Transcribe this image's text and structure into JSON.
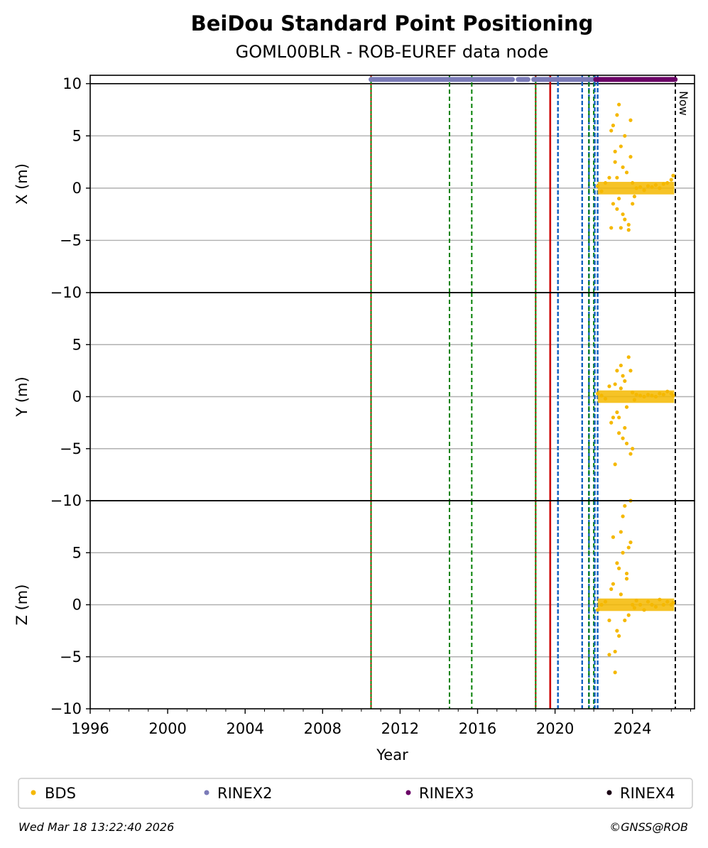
{
  "title": "BeiDou Standard Point Positioning",
  "subtitle": "GOML00BLR - ROB-EUREF data node",
  "footer": {
    "timestamp": "Wed Mar 18 13:22:40 2026",
    "credit": "©GNSS@ROB"
  },
  "legend": [
    {
      "label": "BDS",
      "color": "#f5b800"
    },
    {
      "label": "RINEX2",
      "color": "#7b7bb8"
    },
    {
      "label": "RINEX3",
      "color": "#6a0066"
    },
    {
      "label": "RINEX4",
      "color": "#1a0014"
    }
  ],
  "now_label": "Now",
  "chart_data": {
    "type": "scatter",
    "xlabel": "Year",
    "xlim": [
      1996,
      2027.2
    ],
    "x_ticks": [
      1996,
      2000,
      2004,
      2008,
      2012,
      2016,
      2020,
      2024
    ],
    "x_tick_labels": [
      "1996",
      "2000",
      "2004",
      "2008",
      "2012",
      "2016",
      "2020",
      "2024"
    ],
    "now": 2026.21,
    "panels": [
      {
        "ylabel": "X (m)",
        "ylim": [
          -10,
          10.8
        ],
        "y_ticks": [
          10,
          5,
          0,
          -5,
          -10
        ],
        "y_tick_labels": [
          "10",
          "5",
          "0",
          "−5",
          "−10"
        ]
      },
      {
        "ylabel": "Y (m)",
        "ylim": [
          -10,
          10
        ],
        "y_ticks": [
          5,
          0,
          -5,
          -10
        ],
        "y_tick_labels": [
          "5",
          "0",
          "−5",
          "−10"
        ]
      },
      {
        "ylabel": "Z (m)",
        "ylim": [
          -10,
          10
        ],
        "y_ticks": [
          5,
          0,
          -5,
          -10
        ],
        "y_tick_labels": [
          "5",
          "0",
          "−5",
          "−10"
        ]
      }
    ],
    "events": [
      {
        "x": 2010.5,
        "kind": "green-red-dotted"
      },
      {
        "x": 2014.55,
        "kind": "green-dashed"
      },
      {
        "x": 2015.7,
        "kind": "green-dashed"
      },
      {
        "x": 2019.0,
        "kind": "green-red-dotted"
      },
      {
        "x": 2019.75,
        "kind": "red-solid"
      },
      {
        "x": 2020.15,
        "kind": "blue-dashed"
      },
      {
        "x": 2021.4,
        "kind": "blue-dashed"
      },
      {
        "x": 2021.75,
        "kind": "blue-dashed"
      },
      {
        "x": 2021.75,
        "kind": "green-dashed"
      },
      {
        "x": 2022.0,
        "kind": "green-dashed"
      },
      {
        "x": 2022.05,
        "kind": "blue-dashed"
      },
      {
        "x": 2022.2,
        "kind": "blue-dashed"
      }
    ],
    "data_availability": [
      {
        "series": "RINEX2",
        "start": 2010.5,
        "end": 2022.1,
        "y": 10.4,
        "gaps": [
          [
            2017.8,
            2018.1
          ],
          [
            2018.6,
            2018.9
          ]
        ]
      },
      {
        "series": "RINEX3",
        "start": 2022.1,
        "end": 2026.2,
        "y": 10.4
      }
    ],
    "series": [
      {
        "name": "BDS",
        "component": "X",
        "x": [
          2022.2,
          2022.4,
          2022.6,
          2022.8,
          2023.0,
          2023.0,
          2023.1,
          2023.2,
          2023.3,
          2023.4,
          2023.5,
          2023.6,
          2023.7,
          2023.8,
          2023.9,
          2024.0,
          2024.1,
          2024.2,
          2024.4,
          2024.6,
          2024.8,
          2025.0,
          2025.2,
          2025.4,
          2025.6,
          2025.8,
          2026.0,
          2026.1,
          2022.9,
          2023.1,
          2023.3,
          2023.6,
          2023.8,
          2023.2,
          2023.5,
          2023.9,
          2024.0,
          2022.9,
          2023.2,
          2023.4
        ],
        "y": [
          0.2,
          -0.3,
          0.5,
          1.0,
          -1.5,
          6.0,
          3.5,
          -2.0,
          8.0,
          4.0,
          2.0,
          -3.0,
          1.5,
          -4.0,
          6.5,
          0.5,
          -0.8,
          0.0,
          0.1,
          -0.2,
          0.2,
          0.1,
          0.3,
          0.0,
          0.4,
          0.5,
          0.8,
          1.2,
          -3.8,
          2.5,
          -1.0,
          5.0,
          -3.5,
          1.0,
          -2.5,
          3.0,
          -1.5,
          5.5,
          7.0,
          -3.8
        ]
      },
      {
        "name": "BDS",
        "component": "Y",
        "x": [
          2022.2,
          2022.4,
          2022.6,
          2022.8,
          2023.0,
          2023.1,
          2023.2,
          2023.3,
          2023.4,
          2023.5,
          2023.6,
          2023.7,
          2023.8,
          2023.9,
          2024.0,
          2024.1,
          2024.2,
          2024.4,
          2024.6,
          2024.8,
          2025.0,
          2025.2,
          2025.4,
          2025.6,
          2025.8,
          2026.0,
          2026.1,
          2022.9,
          2023.1,
          2023.3,
          2023.5,
          2023.7,
          2023.9,
          2023.2,
          2023.6,
          2023.4,
          2024.0
        ],
        "y": [
          0.3,
          0.1,
          -0.2,
          1.0,
          -2.0,
          -6.5,
          2.5,
          -3.5,
          3.0,
          -4.0,
          1.5,
          -1.0,
          3.8,
          -5.5,
          0.4,
          -0.3,
          0.2,
          0.1,
          0.0,
          0.2,
          0.1,
          0.0,
          0.3,
          0.2,
          0.5,
          0.3,
          0.1,
          -2.5,
          1.2,
          -2.0,
          2.0,
          -4.5,
          2.5,
          -1.5,
          -3.0,
          0.8,
          -5.0
        ]
      },
      {
        "name": "BDS",
        "component": "Z",
        "x": [
          2022.2,
          2022.4,
          2022.6,
          2022.8,
          2023.0,
          2023.1,
          2023.2,
          2023.3,
          2023.4,
          2023.5,
          2023.6,
          2023.7,
          2023.8,
          2023.9,
          2024.0,
          2024.1,
          2024.2,
          2024.4,
          2024.6,
          2024.8,
          2025.0,
          2025.2,
          2025.4,
          2025.6,
          2025.8,
          2026.0,
          2026.1,
          2022.9,
          2023.0,
          2023.1,
          2023.3,
          2023.5,
          2023.7,
          2023.9,
          2023.2,
          2023.4,
          2023.6,
          2023.8,
          2022.8
        ],
        "y": [
          -0.5,
          0.0,
          0.3,
          -1.5,
          2.0,
          -6.5,
          4.0,
          -3.0,
          7.0,
          5.0,
          9.5,
          3.0,
          -1.0,
          10.0,
          0.0,
          -0.3,
          0.4,
          0.0,
          -0.5,
          0.3,
          0.0,
          -0.2,
          0.5,
          0.0,
          0.3,
          0.0,
          0.2,
          1.5,
          6.5,
          -4.5,
          3.5,
          8.5,
          2.5,
          6.0,
          -2.5,
          1.0,
          -1.5,
          5.5,
          -4.8
        ]
      }
    ]
  }
}
